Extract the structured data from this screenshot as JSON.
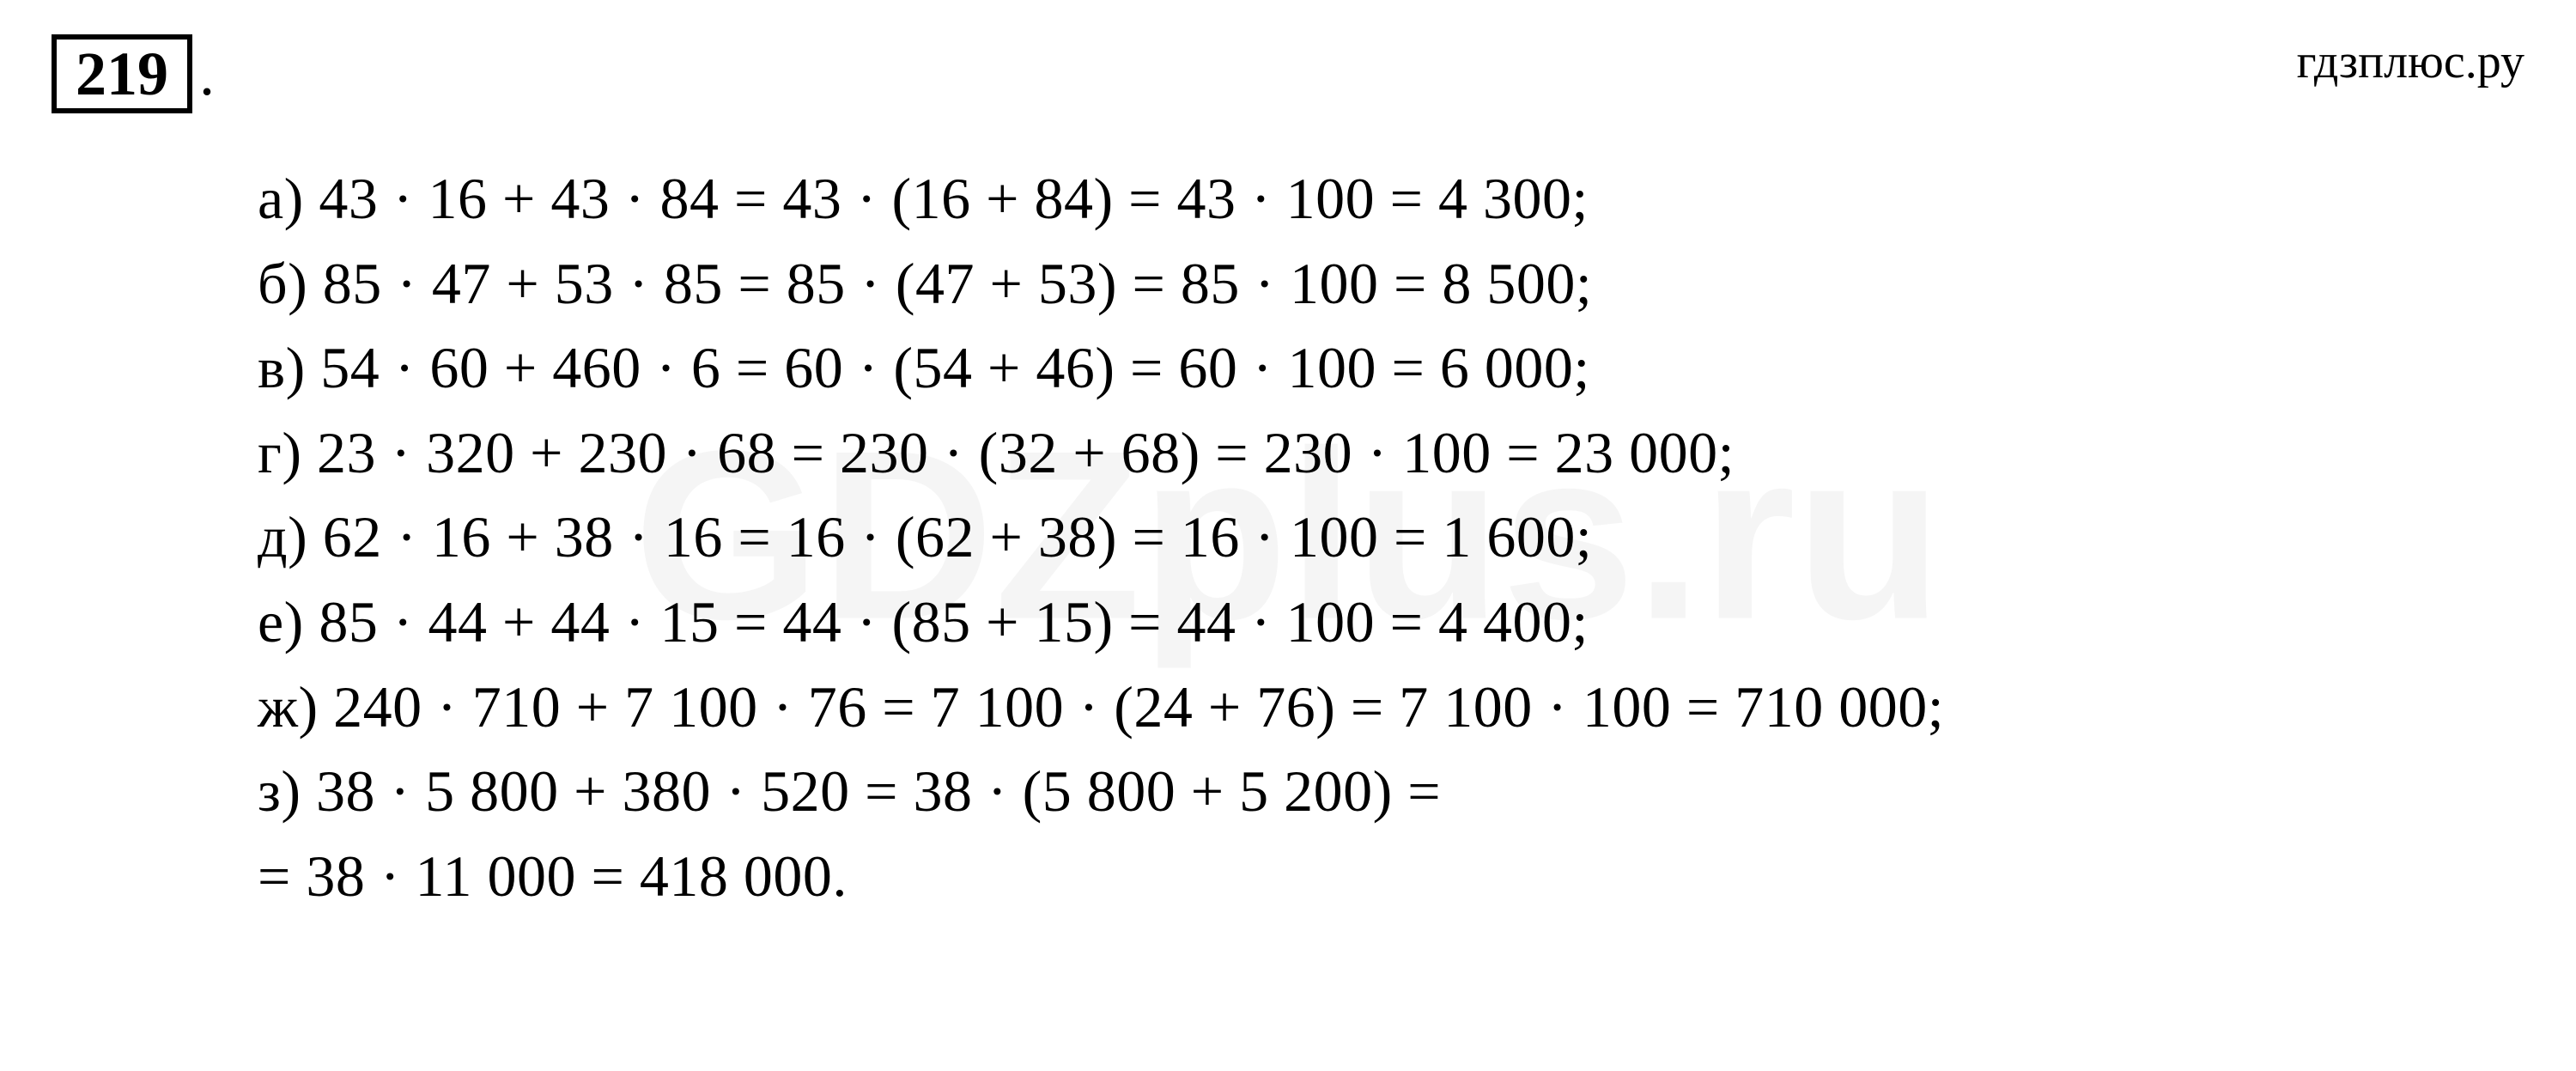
{
  "exercise_number": "219",
  "site_name": "гдзплюс.ру",
  "watermark_text": "GDZplus.ru",
  "colors": {
    "background": "#ffffff",
    "text": "#000000",
    "border": "#000000",
    "watermark": "rgba(0,0,0,0.04)"
  },
  "typography": {
    "body_font": "Times New Roman",
    "number_fontsize": 72,
    "line_fontsize": 68,
    "site_fontsize": 56,
    "watermark_fontsize": 280
  },
  "lines": [
    "а) 43 · 16 + 43 · 84 = 43 · (16 + 84) = 43 · 100 = 4 300;",
    "б) 85 · 47 + 53 · 85 = 85 · (47 + 53) = 85 · 100 = 8 500;",
    "в) 54 · 60 + 460 · 6 = 60 · (54 + 46) = 60 · 100 = 6 000;",
    "г) 23 · 320 + 230 · 68 = 230 · (32 + 68) = 230 · 100 = 23 000;",
    "д) 62 · 16 + 38 · 16 = 16 · (62 + 38) = 16 · 100 = 1 600;",
    "е) 85 · 44 + 44 · 15 = 44 · (85 + 15) = 44 · 100 = 4 400;",
    "ж) 240 · 710 + 7 100 · 76 = 7 100 · (24 + 76) = 7 100 · 100 = 710 000;",
    "з) 38 · 5 800 + 380 · 520 = 38 · (5 800 + 5 200) =",
    "= 38 · 11 000 = 418 000."
  ]
}
